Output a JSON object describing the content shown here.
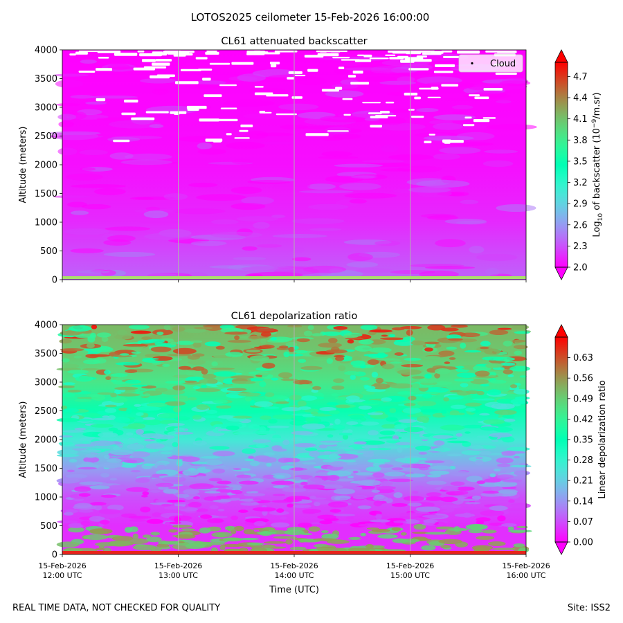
{
  "figure": {
    "suptitle": "LOTOS2025 ceilometer 15-Feb-2026 16:00:00",
    "footer_left": "REAL TIME DATA, NOT CHECKED FOR QUALITY",
    "footer_right": "Site: ISS2"
  },
  "colors": {
    "colormap": "rainbow",
    "gridline": "#b0b0b0",
    "cloud_marker": "#ffffff",
    "surface_line_top": "#a9e06b",
    "surface_line_bottom": "#e8231b"
  },
  "chart_data": [
    {
      "type": "heatmap",
      "title": "CL61 attenuated backscatter",
      "xlabel": "",
      "ylabel": "Altitude (meters)",
      "ylim": [
        0,
        4000
      ],
      "yticks": [
        "0",
        "500",
        "1000",
        "1500",
        "2000",
        "2500",
        "3000",
        "3500",
        "4000"
      ],
      "xticks_shown": false,
      "xlim": [
        "15-Feb-2026 12:00 UTC",
        "15-Feb-2026 16:00 UTC"
      ],
      "vertical_gridlines_at": [
        "13:00",
        "14:00",
        "15:00"
      ],
      "colorbar": {
        "label_prefix": "Log",
        "label_sub": "10",
        "label_mid": " of backscatter (10",
        "label_sup": "−9",
        "label_suffix": "/m.sr)",
        "range": [
          2.0,
          4.9
        ],
        "ticks": [
          "2.0",
          "2.3",
          "2.6",
          "2.9",
          "3.2",
          "3.5",
          "3.8",
          "4.1",
          "4.4",
          "4.7"
        ],
        "extend": "both"
      },
      "legend": {
        "entries": [
          "Cloud"
        ],
        "placement": "top-right"
      },
      "field_summary": [
        {
          "altitude_m": 0,
          "value": 3.7,
          "note": "thin surface band"
        },
        {
          "altitude_m": 100,
          "value": 2.35
        },
        {
          "altitude_m": 1000,
          "value": 2.15
        },
        {
          "altitude_m": 2000,
          "value": 2.05
        },
        {
          "altitude_m": 3000,
          "value": 2.02
        },
        {
          "altitude_m": 4000,
          "value": 2.0
        }
      ],
      "cloud_points_altitude_range_m": [
        2350,
        4000
      ]
    },
    {
      "type": "heatmap",
      "title": "CL61 depolarization ratio",
      "xlabel": "Time (UTC)",
      "ylabel": "Altitude (meters)",
      "ylim": [
        0,
        4000
      ],
      "yticks": [
        "0",
        "500",
        "1000",
        "1500",
        "2000",
        "2500",
        "3000",
        "3500",
        "4000"
      ],
      "xticks": [
        {
          "date": "15-Feb-2026",
          "time": "12:00 UTC"
        },
        {
          "date": "15-Feb-2026",
          "time": "13:00 UTC"
        },
        {
          "date": "15-Feb-2026",
          "time": "14:00 UTC"
        },
        {
          "date": "15-Feb-2026",
          "time": "15:00 UTC"
        },
        {
          "date": "15-Feb-2026",
          "time": "16:00 UTC"
        }
      ],
      "vertical_gridlines_at": [
        "13:00",
        "14:00",
        "15:00"
      ],
      "colorbar": {
        "label": "Linear depolarization ratio",
        "range": [
          0.0,
          0.7
        ],
        "ticks": [
          "0.00",
          "0.07",
          "0.14",
          "0.21",
          "0.28",
          "0.35",
          "0.42",
          "0.49",
          "0.56",
          "0.63"
        ],
        "extend": "both"
      },
      "field_summary": [
        {
          "altitude_m": 0,
          "value": 0.68,
          "note": "thin surface band"
        },
        {
          "altitude_m": 500,
          "value": 0.04
        },
        {
          "altitude_m": 1000,
          "value": 0.07
        },
        {
          "altitude_m": 1500,
          "value": 0.15
        },
        {
          "altitude_m": 2000,
          "value": 0.26
        },
        {
          "altitude_m": 2500,
          "value": 0.36
        },
        {
          "altitude_m": 3000,
          "value": 0.45
        },
        {
          "altitude_m": 3500,
          "value": 0.5
        },
        {
          "altitude_m": 4000,
          "value": 0.52
        }
      ]
    }
  ]
}
